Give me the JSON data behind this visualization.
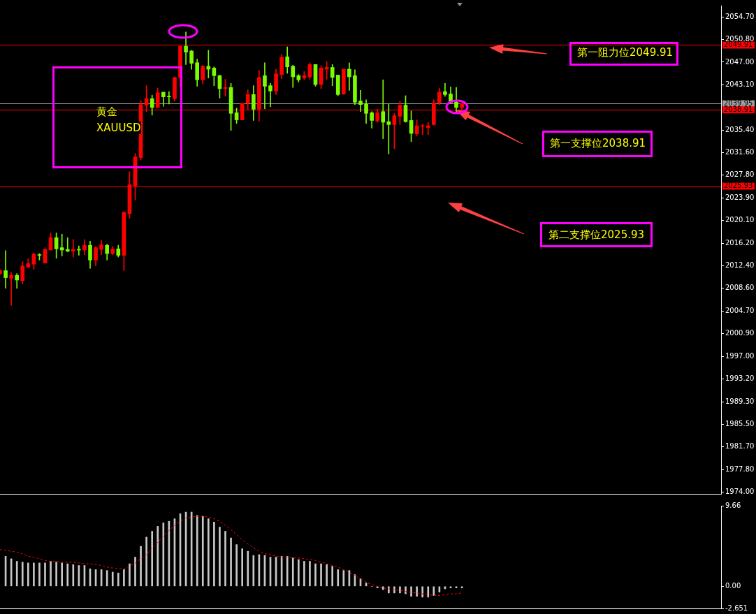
{
  "chart_data": [
    {
      "type": "candlestick",
      "categories": [
        null,
        null,
        null,
        null,
        null,
        null,
        null,
        null,
        null,
        null,
        null,
        null,
        null,
        null,
        null,
        null,
        null,
        null,
        null,
        null,
        null,
        null,
        null,
        null,
        null,
        null,
        null,
        null,
        null,
        null,
        null,
        null,
        null,
        null,
        null,
        null,
        null,
        null,
        null,
        null,
        null,
        null,
        null,
        null,
        null,
        null,
        null,
        null,
        null,
        null,
        null,
        null,
        null,
        null,
        null,
        null,
        null,
        null,
        null,
        null,
        null,
        null,
        null,
        null,
        null,
        null,
        null,
        null,
        null,
        null,
        null,
        null,
        null,
        null,
        null,
        null,
        null,
        null,
        null,
        null,
        null,
        null,
        null,
        null,
        null,
        null,
        null,
        null,
        null,
        null,
        null,
        null,
        null,
        null,
        null,
        null,
        null,
        null,
        null,
        null,
        null,
        null,
        null,
        null,
        null,
        null,
        null,
        null,
        null,
        null,
        null,
        null,
        null,
        null,
        null,
        null,
        null,
        null,
        null,
        null,
        null,
        null,
        null,
        null,
        null,
        null,
        null,
        null,
        null
      ],
      "ohlc": [
        [
          2011.1,
          2011.8,
          2010.9,
          2011.6
        ],
        [
          2011.6,
          2015.0,
          2008.6,
          2010.4
        ],
        [
          2010.3,
          2011.3,
          2005.7,
          2010.8
        ],
        [
          2010.8,
          2011.1,
          2008.6,
          2010.0
        ],
        [
          2009.9,
          2013.1,
          2009.4,
          2012.4
        ],
        [
          2012.2,
          2013.6,
          2012.1,
          2012.8
        ],
        [
          2012.7,
          2014.6,
          2011.8,
          2014.4
        ],
        [
          2014.3,
          2014.5,
          2013.4,
          2014.2
        ],
        [
          2012.9,
          2015.5,
          2012.9,
          2015.2
        ],
        [
          2015.1,
          2018.0,
          2015.1,
          2017.2
        ],
        [
          2017.2,
          2018.0,
          2013.7,
          2015.3
        ],
        [
          2015.5,
          2017.8,
          2014.1,
          2015.1
        ],
        [
          2015.2,
          2017.2,
          2014.8,
          2014.9
        ],
        [
          2014.9,
          2016.9,
          2013.9,
          2015.2
        ],
        [
          2015.2,
          2015.8,
          2014.2,
          2015.1
        ],
        [
          2015.1,
          2016.9,
          2014.3,
          2015.9
        ],
        [
          2015.9,
          2016.6,
          2012.0,
          2013.4
        ],
        [
          2013.4,
          2015.7,
          2012.4,
          2015.5
        ],
        [
          2015.2,
          2016.7,
          2014.3,
          2016.0
        ],
        [
          2015.9,
          2016.1,
          2013.4,
          2014.5
        ],
        [
          2014.5,
          2015.7,
          2014.3,
          2015.3
        ],
        [
          2015.3,
          2015.9,
          2013.9,
          2014.2
        ],
        [
          2014.2,
          2021.6,
          2011.6,
          2021.5
        ],
        [
          2021.3,
          2028.4,
          2020.5,
          2026.2
        ],
        [
          2026.0,
          2031.5,
          2023.6,
          2030.9
        ],
        [
          2030.8,
          2040.5,
          2030.4,
          2039.8
        ],
        [
          2039.7,
          2043.0,
          2038.6,
          2040.8
        ],
        [
          2040.8,
          2041.4,
          2038.0,
          2039.3
        ],
        [
          2039.3,
          2042.6,
          2039.3,
          2041.8
        ],
        [
          2041.9,
          2041.9,
          2039.5,
          2041.1
        ],
        [
          2041.2,
          2042.0,
          2039.9,
          2041.1
        ],
        [
          2040.8,
          2044.5,
          2040.4,
          2044.4
        ],
        [
          2044.4,
          2049.7,
          2042.8,
          2049.7
        ],
        [
          2049.7,
          2052.1,
          2046.6,
          2048.7
        ],
        [
          2048.9,
          2049.0,
          2045.8,
          2046.8
        ],
        [
          2046.9,
          2047.5,
          2042.9,
          2044.0
        ],
        [
          2044.0,
          2046.5,
          2043.3,
          2046.3
        ],
        [
          2046.3,
          2049.0,
          2044.3,
          2045.8
        ],
        [
          2046.0,
          2046.2,
          2043.0,
          2044.7
        ],
        [
          2044.7,
          2044.8,
          2040.9,
          2042.5
        ],
        [
          2042.5,
          2044.1,
          2041.2,
          2042.7
        ],
        [
          2042.7,
          2043.4,
          2035.4,
          2038.3
        ],
        [
          2038.4,
          2039.2,
          2036.6,
          2037.2
        ],
        [
          2037.2,
          2040.1,
          2037.2,
          2040.0
        ],
        [
          2040.0,
          2042.3,
          2039.0,
          2041.5
        ],
        [
          2041.5,
          2043.0,
          2037.1,
          2039.0
        ],
        [
          2039.0,
          2045.6,
          2037.0,
          2044.4
        ],
        [
          2044.7,
          2046.9,
          2039.1,
          2042.9
        ],
        [
          2043.0,
          2043.4,
          2039.4,
          2042.1
        ],
        [
          2042.1,
          2045.8,
          2041.5,
          2045.0
        ],
        [
          2044.9,
          2048.3,
          2044.2,
          2047.8
        ],
        [
          2047.9,
          2049.6,
          2045.1,
          2046.2
        ],
        [
          2046.3,
          2046.5,
          2042.7,
          2044.5
        ],
        [
          2044.7,
          2044.9,
          2043.6,
          2044.0
        ],
        [
          2044.3,
          2045.4,
          2044.0,
          2044.7
        ],
        [
          2044.5,
          2046.9,
          2044.1,
          2046.6
        ],
        [
          2046.6,
          2046.6,
          2042.9,
          2043.2
        ],
        [
          2043.2,
          2046.4,
          2042.5,
          2046.0
        ],
        [
          2045.8,
          2047.1,
          2044.1,
          2046.1
        ],
        [
          2046.1,
          2046.6,
          2043.0,
          2044.4
        ],
        [
          2044.8,
          2044.8,
          2041.3,
          2041.5
        ],
        [
          2041.6,
          2045.8,
          2041.5,
          2045.8
        ],
        [
          2045.8,
          2046.9,
          2042.2,
          2044.5
        ],
        [
          2044.7,
          2045.7,
          2039.8,
          2040.2
        ],
        [
          2040.4,
          2042.2,
          2038.6,
          2039.8
        ],
        [
          2039.9,
          2040.6,
          2036.6,
          2038.3
        ],
        [
          2038.4,
          2038.6,
          2035.8,
          2037.1
        ],
        [
          2037.0,
          2039.0,
          2036.8,
          2038.4
        ],
        [
          2038.6,
          2044.0,
          2034.0,
          2036.8
        ],
        [
          2036.9,
          2039.9,
          2031.4,
          2036.4
        ],
        [
          2036.4,
          2038.3,
          2032.3,
          2037.9
        ],
        [
          2037.8,
          2040.4,
          2036.4,
          2039.7
        ],
        [
          2039.7,
          2041.3,
          2036.8,
          2036.9
        ],
        [
          2037.1,
          2038.7,
          2033.5,
          2034.9
        ],
        [
          2034.8,
          2037.2,
          2034.5,
          2036.2
        ],
        [
          2036.1,
          2036.5,
          2034.7,
          2036.2
        ],
        [
          2035.9,
          2036.8,
          2034.7,
          2036.2
        ],
        [
          2036.4,
          2040.6,
          2036.3,
          2040.1
        ],
        [
          2040.1,
          2042.6,
          2039.8,
          2041.9
        ],
        [
          2042.0,
          2043.4,
          2041.2,
          2041.5
        ],
        [
          2041.6,
          2042.8,
          2040.0,
          2040.1
        ],
        [
          2040.2,
          2042.7,
          2038.5,
          2039.3
        ],
        [
          2039.3,
          2040.0,
          2038.8,
          2039.95
        ],
        null,
        null,
        null,
        null,
        null,
        null,
        null,
        null,
        null,
        null,
        null,
        null,
        null,
        null,
        null,
        null,
        null,
        null,
        null,
        null,
        null,
        null,
        null,
        null,
        null,
        null,
        null,
        null,
        null,
        null,
        null,
        null,
        null,
        null,
        null,
        null,
        null,
        null,
        null,
        null,
        null,
        null,
        null,
        null,
        null,
        null
      ],
      "colors": [
        "#ff0000",
        "#7cfc00",
        "#ff0000",
        "#7cfc00",
        "#ff0000",
        "#ff0000",
        "#ff0000",
        "#7cfc00",
        "#ff0000",
        "#ff0000",
        "#7cfc00",
        "#7cfc00",
        "#7cfc00",
        "#ff0000",
        "#7cfc00",
        "#ff0000",
        "#7cfc00",
        "#ff0000",
        "#ff0000",
        "#7cfc00",
        "#ff0000",
        "#7cfc00",
        "#ff0000",
        "#ff0000",
        "#ff0000",
        "#ff0000",
        "#ff0000",
        "#7cfc00",
        "#ff0000",
        "#7cfc00",
        "#7cfc00",
        "#ff0000",
        "#ff0000",
        "#7cfc00",
        "#7cfc00",
        "#7cfc00",
        "#ff0000",
        "#7cfc00",
        "#7cfc00",
        "#7cfc00",
        "#ff0000",
        "#7cfc00",
        "#7cfc00",
        "#ff0000",
        "#ff0000",
        "#7cfc00",
        "#ff0000",
        "#7cfc00",
        "#7cfc00",
        "#ff0000",
        "#ff0000",
        "#7cfc00",
        "#7cfc00",
        "#7cfc00",
        "#ff0000",
        "#ff0000",
        "#7cfc00",
        "#ff0000",
        "#ff0000",
        "#7cfc00",
        "#7cfc00",
        "#ff0000",
        "#7cfc00",
        "#7cfc00",
        "#7cfc00",
        "#7cfc00",
        "#7cfc00",
        "#ff0000",
        "#7cfc00",
        "#7cfc00",
        "#ff0000",
        "#ff0000",
        "#7cfc00",
        "#7cfc00",
        "#ff0000",
        "#ff0000",
        "#ff0000",
        "#ff0000",
        "#ff0000",
        "#7cfc00",
        "#7cfc00",
        "#7cfc00",
        "#ff0000",
        null,
        null,
        null,
        null,
        null,
        null,
        null,
        null,
        null,
        null,
        null,
        null,
        null,
        null,
        null,
        null,
        null,
        null,
        null,
        null,
        null,
        null,
        null,
        null,
        null,
        null,
        null,
        null,
        null,
        null,
        null,
        null,
        null,
        null,
        null,
        null,
        null,
        null,
        null,
        null,
        null,
        null,
        null,
        null,
        null,
        null
      ],
      "ylim": [
        1973.7,
        2056.6
      ],
      "yticks": [
        {
          "value": 2054.7,
          "label": "2054.70"
        },
        {
          "value": 2050.8,
          "label": "2050.80"
        },
        {
          "value": 2047,
          "label": "2047.00"
        },
        {
          "value": 2043.1,
          "label": "2043.10"
        },
        {
          "value": 2035.4,
          "label": "2035.40"
        },
        {
          "value": 2031.6,
          "label": "2031.60"
        },
        {
          "value": 2027.8,
          "label": "2027.80"
        },
        {
          "value": 2023.9,
          "label": "2023.90"
        },
        {
          "value": 2020.1,
          "label": "2020.10"
        },
        {
          "value": 2016.2,
          "label": "2016.20"
        },
        {
          "value": 2012.4,
          "label": "2012.40"
        },
        {
          "value": 2008.6,
          "label": "2008.60"
        },
        {
          "value": 2004.7,
          "label": "2004.70"
        },
        {
          "value": 2000.9,
          "label": "2000.90"
        },
        {
          "value": 1997,
          "label": "1997.00"
        },
        {
          "value": 1993.2,
          "label": "1993.20"
        },
        {
          "value": 1989.3,
          "label": "1989.30"
        },
        {
          "value": 1985.5,
          "label": "1985.50"
        },
        {
          "value": 1981.7,
          "label": "1981.70"
        },
        {
          "value": 1977.8,
          "label": "1977.80"
        },
        {
          "value": 1974,
          "label": "1974.00"
        }
      ],
      "tick_labels": "y",
      "ref_lines": [
        {
          "axis": "y",
          "value": 2049.91,
          "label": "2049.91",
          "color": "#ff0000"
        },
        {
          "axis": "y",
          "value": 2039.95,
          "label": "2039.95",
          "color": "#a0a0a0"
        },
        {
          "axis": "y",
          "value": 2038.91,
          "label": "2038.91",
          "color": "#ff0000"
        },
        {
          "axis": "y",
          "value": 2025.93,
          "label": "2025.93",
          "color": "#ff0000"
        }
      ],
      "annotations": [
        "黄金",
        "XAUUSD",
        "第一阻力位2049.91",
        "第一支撑位2038.91",
        "第二支撑位2025.93"
      ]
    },
    {
      "type": "bar",
      "categories": [
        null,
        null,
        null,
        null,
        null,
        null,
        null,
        null,
        null,
        null,
        null,
        null,
        null,
        null,
        null,
        null,
        null,
        null,
        null,
        null,
        null,
        null,
        null,
        null,
        null,
        null,
        null,
        null,
        null,
        null,
        null,
        null,
        null,
        null,
        null,
        null,
        null,
        null,
        null,
        null,
        null,
        null,
        null,
        null,
        null,
        null,
        null,
        null,
        null,
        null,
        null,
        null,
        null,
        null,
        null,
        null,
        null,
        null,
        null,
        null,
        null,
        null,
        null,
        null,
        null,
        null,
        null,
        null,
        null,
        null,
        null,
        null,
        null,
        null,
        null,
        null,
        null,
        null,
        null,
        null,
        null,
        null,
        null,
        null,
        null,
        null,
        null,
        null,
        null,
        null,
        null,
        null,
        null,
        null,
        null,
        null,
        null,
        null,
        null,
        null,
        null,
        null,
        null,
        null,
        null,
        null,
        null,
        null,
        null,
        null,
        null,
        null,
        null,
        null,
        null,
        null,
        null,
        null,
        null,
        null,
        null,
        null,
        null,
        null,
        null,
        null,
        null,
        null,
        null
      ],
      "series": [
        {
          "color": "#c8c8c8",
          "values": [
            null,
            3.6,
            3.3,
            3.0,
            2.9,
            2.8,
            2.8,
            2.8,
            2.8,
            3.0,
            2.9,
            2.8,
            2.7,
            2.6,
            2.5,
            2.5,
            2.1,
            2.0,
            2.0,
            1.9,
            1.7,
            1.6,
            2.0,
            2.7,
            3.5,
            4.8,
            5.9,
            6.6,
            7.2,
            7.6,
            7.8,
            8.1,
            8.7,
            8.9,
            8.9,
            8.5,
            8.4,
            8.1,
            7.7,
            7.1,
            6.6,
            5.8,
            5.0,
            4.5,
            4.2,
            3.7,
            3.8,
            3.7,
            3.5,
            3.5,
            3.6,
            3.6,
            3.4,
            3.2,
            3.0,
            3.0,
            2.7,
            2.7,
            2.6,
            2.4,
            2.0,
            1.9,
            1.9,
            1.4,
            0.9,
            0.4,
            0,
            -0.2,
            -0.4,
            -0.8,
            -0.8,
            -0.8,
            -0.9,
            -1.2,
            -1.2,
            -1.3,
            -1.3,
            -1.1,
            -0.7,
            -0.3,
            -0.2,
            -0.2,
            -0.2,
            null,
            null,
            null,
            null,
            null,
            null,
            null,
            null,
            null,
            null,
            null,
            null,
            null,
            null,
            null,
            null,
            null,
            null,
            null,
            null,
            null,
            null,
            null,
            null,
            null,
            null,
            null,
            null,
            null,
            null,
            null,
            null,
            null,
            null,
            null,
            null,
            null,
            null,
            null,
            null,
            null,
            null,
            null,
            null,
            null,
            null
          ]
        },
        {
          "type": "line",
          "color": "#ff0000",
          "line_style": "dashed",
          "values": [
            4.4,
            4.3,
            4.2,
            4.1,
            3.9,
            3.6,
            3.5,
            3.3,
            3.1,
            3.0,
            3.0,
            2.9,
            2.9,
            2.9,
            2.8,
            2.7,
            2.7,
            2.6,
            2.5,
            2.3,
            2.2,
            2.1,
            2.1,
            2.4,
            2.8,
            3.3,
            3.8,
            4.6,
            5.3,
            6.0,
            6.7,
            7.3,
            7.8,
            8.2,
            8.3,
            8.4,
            8.4,
            8.3,
            8.1,
            7.8,
            7.3,
            6.8,
            6.2,
            5.6,
            5.1,
            4.6,
            4.2,
            3.9,
            3.8,
            3.6,
            3.5,
            3.5,
            3.4,
            3.4,
            3.3,
            3.2,
            3.1,
            2.9,
            2.7,
            2.5,
            2.3,
            2.0,
            1.7,
            1.3,
            0.9,
            0.5,
            0.2,
            0.0,
            -0.2,
            -0.3,
            -0.4,
            -0.5,
            -0.6,
            -0.7,
            -0.8,
            -0.9,
            -1.0,
            -1.1,
            -1.1,
            -1.0,
            -0.9,
            -0.9,
            -0.8,
            null,
            null,
            null,
            null,
            null,
            null,
            null,
            null,
            null,
            null,
            null,
            null,
            null,
            null,
            null,
            null,
            null,
            null,
            null,
            null,
            null,
            null,
            null,
            null,
            null,
            null,
            null,
            null,
            null,
            null,
            null,
            null,
            null,
            null,
            null,
            null,
            null,
            null,
            null,
            null,
            null,
            null,
            null,
            null,
            null,
            null
          ]
        }
      ],
      "ylim": [
        -2.651,
        9.66
      ],
      "yticks": [
        9.66,
        {
          "value": 0,
          "label": "0.00"
        },
        -2.651
      ],
      "tick_labels": "y"
    }
  ]
}
